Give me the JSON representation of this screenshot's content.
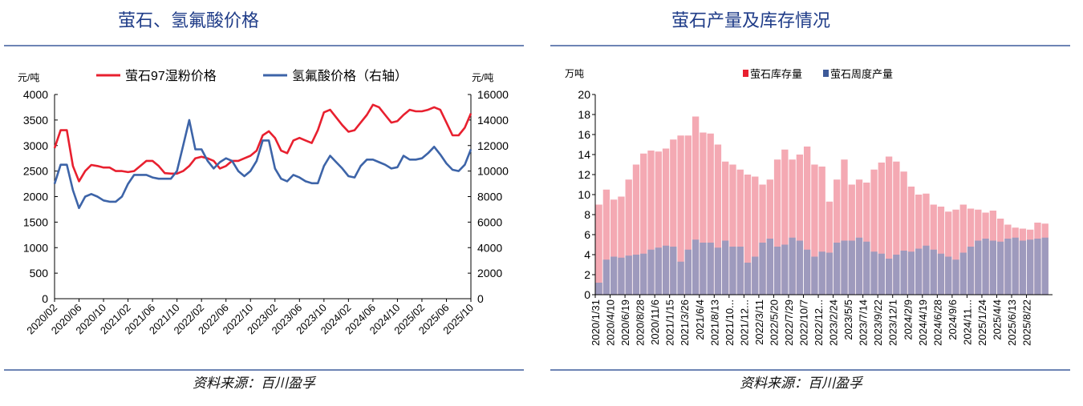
{
  "left": {
    "title": "萤石、氢氟酸价格",
    "source": "资料来源：百川盈孚",
    "chart_data": {
      "type": "line",
      "title": "",
      "ylabel_left": "元/吨",
      "ylabel_right": "元/吨",
      "ylim_left": [
        0,
        4000
      ],
      "ylim_right": [
        0,
        16000
      ],
      "yticks_left": [
        "0",
        "500",
        "1000",
        "1500",
        "2000",
        "2500",
        "3000",
        "3500",
        "4000"
      ],
      "yticks_right": [
        "0",
        "2000",
        "4000",
        "6000",
        "8000",
        "10000",
        "12000",
        "14000",
        "16000"
      ],
      "xticks": [
        "2020/02",
        "2020/06",
        "2020/10",
        "2021/02",
        "2021/06",
        "2021/10",
        "2022/02",
        "2022/06",
        "2022/10",
        "2023/02",
        "2023/06",
        "2023/10",
        "2024/02",
        "2024/06",
        "2024/10",
        "2025/02",
        "2025/06",
        "2025/10"
      ],
      "grid": false,
      "legend_placement": "top",
      "x_start": "2020/02",
      "x_end": "2025/10",
      "series": [
        {
          "name": "萤石97湿粉价格",
          "axis": "left",
          "color": "#e8202f",
          "values": [
            2950,
            3300,
            3300,
            2600,
            2300,
            2500,
            2620,
            2600,
            2570,
            2570,
            2500,
            2500,
            2480,
            2500,
            2600,
            2700,
            2700,
            2600,
            2460,
            2450,
            2450,
            2500,
            2600,
            2750,
            2780,
            2750,
            2700,
            2550,
            2600,
            2700,
            2700,
            2750,
            2800,
            2900,
            3200,
            3280,
            3150,
            2900,
            2850,
            3100,
            3150,
            3100,
            3050,
            3300,
            3650,
            3700,
            3550,
            3400,
            3270,
            3300,
            3450,
            3600,
            3800,
            3750,
            3600,
            3450,
            3480,
            3600,
            3700,
            3670,
            3670,
            3700,
            3750,
            3700,
            3450,
            3200,
            3200,
            3350,
            3630
          ]
        },
        {
          "name": "氢氟酸价格（右轴）",
          "axis": "right",
          "color": "#3d64a8",
          "values": [
            9000,
            10500,
            10500,
            8500,
            7100,
            8000,
            8200,
            8000,
            7700,
            7600,
            7600,
            8000,
            9000,
            9700,
            9700,
            9700,
            9500,
            9400,
            9400,
            9400,
            10000,
            12000,
            14000,
            11700,
            11700,
            10800,
            10200,
            10700,
            11000,
            10800,
            10000,
            9600,
            10000,
            10800,
            12400,
            12400,
            10200,
            9400,
            9200,
            9700,
            9500,
            9200,
            9050,
            9050,
            10400,
            11200,
            10700,
            10200,
            9600,
            9500,
            10400,
            10900,
            10900,
            10700,
            10500,
            10200,
            10300,
            11200,
            10900,
            10900,
            11000,
            11400,
            11900,
            11300,
            10600,
            10100,
            10000,
            10500,
            11700
          ]
        }
      ]
    }
  },
  "right": {
    "title": "萤石产量及库存情况",
    "source": "资料来源：百川盈孚",
    "chart_data": {
      "type": "bar",
      "title": "",
      "ylabel": "万吨",
      "ylim": [
        0,
        20
      ],
      "yticks": [
        "0",
        "2",
        "4",
        "6",
        "8",
        "10",
        "12",
        "14",
        "16",
        "18",
        "20"
      ],
      "xticks": [
        "2020/1/31",
        "2020/4/10",
        "2020/6/19",
        "2020/8/28",
        "2020/11/6",
        "2021/1/15",
        "2021/3/26",
        "2021/6/4",
        "2021/8/13",
        "2021/10...",
        "2021/12...",
        "2022/3/11",
        "2022/5/20",
        "2022/7/29",
        "2022/10/7",
        "2022/12...",
        "2023/2/24",
        "2023/5/5",
        "2023/7/14",
        "2023/9/22",
        "2023/12/1",
        "2024/2/9",
        "2024/4/19",
        "2024/6/28",
        "2024/9/6",
        "2024/11...",
        "2025/1/24",
        "2025/4/4",
        "2025/6/13",
        "2025/8/22"
      ],
      "grid": false,
      "legend_placement": "top",
      "series": [
        {
          "name": "萤石库存量",
          "color": "#e8202f",
          "values": [
            9,
            10.5,
            9.5,
            9.8,
            11.5,
            13,
            14.1,
            14.4,
            14.3,
            14.6,
            15.5,
            15.9,
            15.9,
            17.8,
            16.2,
            16.1,
            15.0,
            13.3,
            13.0,
            12.5,
            12.0,
            11.8,
            11.0,
            11.5,
            13.5,
            14.5,
            13.5,
            14,
            14.8,
            13,
            12.8,
            9.3,
            11.5,
            13.5,
            11,
            11.5,
            11.2,
            12.5,
            13.2,
            13.8,
            13.3,
            12.3,
            10.8,
            10,
            10.1,
            9,
            8.8,
            8.3,
            8.5,
            9,
            8.6,
            8.5,
            8.2,
            8.4,
            7.6,
            7.0,
            6.7,
            6.6,
            6.5,
            7.2,
            7.1
          ]
        },
        {
          "name": "萤石周度产量",
          "color": "#3d5a99",
          "values": [
            1.2,
            3.5,
            3.8,
            3.7,
            3.9,
            4.0,
            4.1,
            4.5,
            4.7,
            4.9,
            4.8,
            3.3,
            4.5,
            5.5,
            5.2,
            5.2,
            4.7,
            5.4,
            4.8,
            4.8,
            3.2,
            3.8,
            5.2,
            5.6,
            4.8,
            5.0,
            5.7,
            5.4,
            4.5,
            3.8,
            4.3,
            4.2,
            5.2,
            5.4,
            5.4,
            5.7,
            5.3,
            4.3,
            4.1,
            3.6,
            4.0,
            4.4,
            4.3,
            4.6,
            4.9,
            4.5,
            4.1,
            3.8,
            3.5,
            4.2,
            4.8,
            5.4,
            5.6,
            5.4,
            5.3,
            5.6,
            5.7,
            5.4,
            5.5,
            5.6,
            5.7
          ]
        }
      ]
    }
  }
}
